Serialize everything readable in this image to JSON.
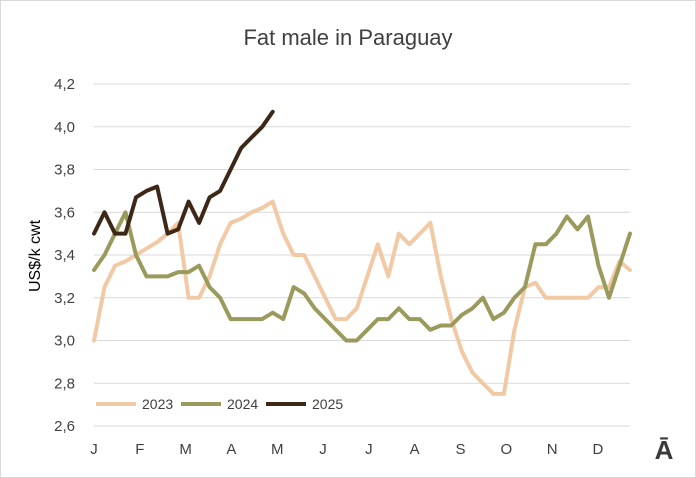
{
  "chart_data": {
    "type": "line",
    "title": "Fat male in Paraguay",
    "ylabel": "US$/k cwt",
    "xlabel": "",
    "ylim": [
      2.6,
      4.2
    ],
    "yticks": [
      "2,6",
      "2,8",
      "3,0",
      "3,2",
      "3,4",
      "3,6",
      "3,8",
      "4,0",
      "4,2"
    ],
    "yticks_values": [
      2.6,
      2.8,
      3.0,
      3.2,
      3.4,
      3.6,
      3.8,
      4.0,
      4.2
    ],
    "x_month_labels": [
      "J",
      "F",
      "M",
      "A",
      "M",
      "J",
      "J",
      "A",
      "S",
      "O",
      "N",
      "D"
    ],
    "x_unit": "week",
    "xlim": [
      1,
      52
    ],
    "grid": true,
    "legend_position": "bottom-left",
    "series": [
      {
        "name": "2023",
        "color": "#f2c9a5",
        "values": [
          3.0,
          3.25,
          3.35,
          3.37,
          3.4,
          3.43,
          3.46,
          3.5,
          3.55,
          3.2,
          3.2,
          3.3,
          3.45,
          3.55,
          3.57,
          3.6,
          3.62,
          3.65,
          3.5,
          3.4,
          3.4,
          3.3,
          3.2,
          3.1,
          3.1,
          3.15,
          3.3,
          3.45,
          3.3,
          3.5,
          3.45,
          3.5,
          3.55,
          3.3,
          3.1,
          2.95,
          2.85,
          2.8,
          2.75,
          2.75,
          3.05,
          3.25,
          3.27,
          3.2,
          3.2,
          3.2,
          3.2,
          3.2,
          3.25,
          3.25,
          3.37,
          3.33
        ]
      },
      {
        "name": "2024",
        "color": "#9a9a5c",
        "values": [
          3.33,
          3.4,
          3.5,
          3.6,
          3.4,
          3.3,
          3.3,
          3.3,
          3.32,
          3.32,
          3.35,
          3.25,
          3.2,
          3.1,
          3.1,
          3.1,
          3.1,
          3.13,
          3.1,
          3.25,
          3.22,
          3.15,
          3.1,
          3.05,
          3.0,
          3.0,
          3.05,
          3.1,
          3.1,
          3.15,
          3.1,
          3.1,
          3.05,
          3.07,
          3.07,
          3.12,
          3.15,
          3.2,
          3.1,
          3.13,
          3.2,
          3.25,
          3.45,
          3.45,
          3.5,
          3.58,
          3.52,
          3.58,
          3.35,
          3.2,
          3.35,
          3.5
        ]
      },
      {
        "name": "2025",
        "color": "#3d2817",
        "values": [
          3.5,
          3.6,
          3.5,
          3.5,
          3.67,
          3.7,
          3.72,
          3.5,
          3.52,
          3.65,
          3.55,
          3.67,
          3.7,
          3.8,
          3.9,
          3.95,
          4.0,
          4.07
        ]
      }
    ]
  },
  "brand": {
    "logo_text": "Ā"
  }
}
